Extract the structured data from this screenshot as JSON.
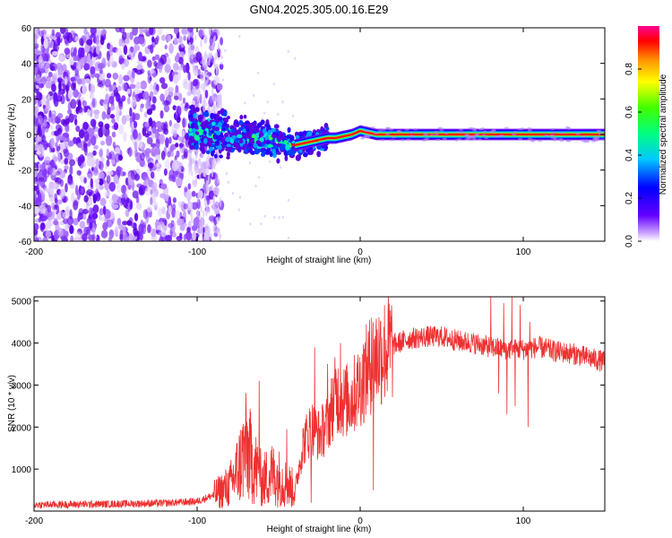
{
  "page_title": "GN04.2025.305.00.16.E29",
  "chart_data": [
    {
      "type": "heatmap",
      "title": "GN04.2025.305.00.16.E29",
      "xlabel": "Height of straight line (km)",
      "ylabel": "Frequency (Hz)",
      "xlim": [
        -200,
        150
      ],
      "ylim": [
        -60,
        60
      ],
      "x_ticks": [
        -200,
        -100,
        0,
        100
      ],
      "y_ticks": [
        -60,
        -40,
        -20,
        0,
        20,
        40,
        60
      ],
      "x_tick_labels": [
        "-200",
        "-100",
        "0",
        "100"
      ],
      "y_tick_labels": [
        "-60",
        "-40",
        "-20",
        "0",
        "20",
        "40",
        "60"
      ],
      "colorbar": {
        "label": "Normalized spectral amplitude",
        "range": [
          0,
          1
        ],
        "ticks": [
          0.0,
          0.2,
          0.4,
          0.6,
          0.8
        ],
        "tick_labels": [
          "0.0",
          "0.2",
          "0.4",
          "0.6",
          "0.8"
        ]
      },
      "dominant_frequency_track": {
        "x": [
          -100,
          -90,
          -80,
          -70,
          -60,
          -50,
          -45,
          -40,
          -35,
          -30,
          -25,
          -20,
          -15,
          -10,
          -5,
          0,
          5,
          10,
          20,
          50,
          100,
          150
        ],
        "y": [
          3,
          1,
          0,
          -2,
          -3,
          -4,
          -5,
          -6,
          -5,
          -4,
          -3,
          -2,
          -2,
          -1,
          0,
          2,
          1,
          0,
          0,
          0,
          0,
          0
        ]
      },
      "description_regions": {
        "noise_x_range": [
          -200,
          -85
        ],
        "signal_onset_x": -105
      }
    },
    {
      "type": "line",
      "title": "",
      "xlabel": "Height of straight line (km)",
      "ylabel": "SNR (10 * v/v)",
      "xlim": [
        -200,
        150
      ],
      "ylim": [
        0,
        5100
      ],
      "x_ticks": [
        -200,
        -100,
        0,
        100
      ],
      "y_ticks": [
        1000,
        2000,
        3000,
        4000,
        5000
      ],
      "x_tick_labels": [
        "-200",
        "-100",
        "0",
        "100"
      ],
      "y_tick_labels": [
        "1000",
        "2000",
        "3000",
        "4000",
        "5000"
      ],
      "series": [
        {
          "name": "SNR",
          "color": "#ee3030",
          "envelope": {
            "x": [
              -200,
              -150,
              -120,
              -100,
              -90,
              -80,
              -75,
              -70,
              -65,
              -60,
              -55,
              -50,
              -45,
              -40,
              -35,
              -30,
              -25,
              -20,
              -15,
              -10,
              -5,
              0,
              5,
              10,
              20,
              30,
              40,
              50,
              60,
              70,
              80,
              90,
              100,
              110,
              120,
              130,
              140,
              150
            ],
            "y": [
              150,
              170,
              190,
              230,
              380,
              600,
              1000,
              1500,
              1100,
              700,
              900,
              800,
              650,
              500,
              1600,
              2000,
              1800,
              2100,
              2800,
              2600,
              2700,
              3000,
              3400,
              3700,
              3950,
              4100,
              4150,
              4150,
              4050,
              4000,
              3900,
              3850,
              3850,
              3900,
              3800,
              3750,
              3650,
              3550
            ]
          },
          "spikes": [
            {
              "x": -62,
              "y": 3100
            },
            {
              "x": -45,
              "y": 1950
            },
            {
              "x": -28,
              "y": 3900
            },
            {
              "x": -20,
              "y": 3500
            },
            {
              "x": -12,
              "y": 4000
            },
            {
              "x": -2,
              "y": 3400
            },
            {
              "x": 7,
              "y": 4600
            },
            {
              "x": 8,
              "y": 500
            },
            {
              "x": -30,
              "y": 200
            },
            {
              "x": 80,
              "y": 5100
            },
            {
              "x": 85,
              "y": 2800
            },
            {
              "x": 88,
              "y": 4950
            },
            {
              "x": 90,
              "y": 2300
            },
            {
              "x": 93,
              "y": 5100
            },
            {
              "x": 95,
              "y": 2500
            },
            {
              "x": 98,
              "y": 4900
            },
            {
              "x": 103,
              "y": 2000
            },
            {
              "x": 104,
              "y": 4500
            }
          ]
        }
      ]
    }
  ]
}
